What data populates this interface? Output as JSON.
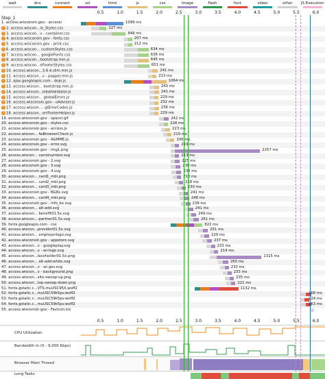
{
  "legend": [
    {
      "label": "wait",
      "color": "#d0d0d0"
    },
    {
      "label": "dns",
      "color": "#2f8f8f"
    },
    {
      "label": "connect",
      "color": "#e87d1a"
    },
    {
      "label": "ssl",
      "color": "#b14fc2"
    },
    {
      "label": "html",
      "color": "#5b8fd6"
    },
    {
      "label": "js",
      "color": "#e5c07a"
    },
    {
      "label": "css",
      "color": "#a6d38a"
    },
    {
      "label": "image",
      "color": "#a78ac4"
    },
    {
      "label": "flash",
      "color": "#2f9a4f"
    },
    {
      "label": "font",
      "color": "#e04c3c"
    },
    {
      "label": "video",
      "color": "#1f9e9e"
    },
    {
      "label": "other",
      "color": "#cfcfcf"
    },
    {
      "label": "JS Execution",
      "color": "#f5b3d6"
    }
  ],
  "axis_ticks": [
    "0.5",
    "1.0",
    "1.5",
    "2.0",
    "2.5",
    "3.0",
    "3.5",
    "4.0",
    "4.5",
    "5.0",
    "5.5",
    "6.0"
  ],
  "step_label": "Step_1",
  "requests": [
    {
      "label": "1. access.wisconsin.gov - access/",
      "time": "1099 ms",
      "warn": false
    },
    {
      "label": "2. access.wiscon...ie_Styles.css",
      "time": "227 ms",
      "warn": true
    },
    {
      "label": "3. access.wiscon...v - container.css",
      "time": "848 ms",
      "warn": true
    },
    {
      "label": "4. access.wisconsin.gov - fonts.css",
      "time": "207 ms",
      "warn": true
    },
    {
      "label": "5. access.wisconsin.gov - print.css",
      "time": "212 ms",
      "warn": true
    },
    {
      "label": "6. access.wiscon... customStyles.css",
      "time": "634 ms",
      "warn": true
    },
    {
      "label": "7. access.wiscon... googleFonts.css",
      "time": "636 ms",
      "warn": true
    },
    {
      "label": "8. access.wiscon...bootstrap.min.js",
      "time": "645 ms",
      "warn": true
    },
    {
      "label": "9. access.wiscon...eFooterStyles.css",
      "time": "651 ms",
      "warn": true
    },
    {
      "label": "10. access.wiscon...3.6.4.slim.min.js",
      "time": "241 ms",
      "warn": true
    },
    {
      "label": "11. access.wiscon...v - popper.min.js",
      "time": "213 ms",
      "warn": true
    },
    {
      "label": "12. ajax.googleapis.com - dojo.js",
      "time": "1064 ms",
      "warn": true
    },
    {
      "label": "13. access.wiscon... bootstrap.min.js",
      "time": "243 ms",
      "warn": true
    },
    {
      "label": "14. access.wiscon...lobalValidator.js",
      "time": "241 ms",
      "warn": true
    },
    {
      "label": "15. access.wiscon... globalErrors.js",
      "time": "229 ms",
      "warn": true
    },
    {
      "label": "16. access.wisconsin.gov - oAdviser.js",
      "time": "232 ms",
      "warn": true
    },
    {
      "label": "17. access.wiscon...- glErrorCodes.js",
      "time": "236 ms",
      "warn": true
    },
    {
      "label": "18. access.wiscon...errFooterHelper.js",
      "time": "229 ms",
      "warn": true
    },
    {
      "label": "19. access.wisconsin.gov - spacer.gif",
      "time": "242 ms",
      "warn": false
    },
    {
      "label": "20. access.wisconsin.gov - styles.css",
      "time": "228 ms",
      "warn": false
    },
    {
      "label": "21. access.wisconsin.gov - access.js",
      "time": "223 ms",
      "warn": false
    },
    {
      "label": "22. access.wiscon... fwBrowserCheck.js",
      "time": "219 ms",
      "warn": false
    },
    {
      "label": "23. access.wisconsin.gov - AGMME.js",
      "time": "206 ms",
      "warn": false
    },
    {
      "label": "24. access.wisconsin.gov - error.svg",
      "time": "219 ms",
      "warn": false
    },
    {
      "label": "25. access.wisconsin.gov - img1.png",
      "time": "2257 ms",
      "warn": false
    },
    {
      "label": "26. access.wiscon... carrotsymbol.svg",
      "time": "213 ms",
      "warn": false
    },
    {
      "label": "27. access.wisconsin.gov - 2.svg",
      "time": "225 ms",
      "warn": false
    },
    {
      "label": "28. access.wisconsin.gov - 3.svg",
      "time": "230 ms",
      "warn": false
    },
    {
      "label": "29. access.wisconsin.gov - 4.svg",
      "time": "235 ms",
      "warn": false
    },
    {
      "label": "30. access.wiscon... card1_mbl.png",
      "time": "218 ms",
      "warn": false
    },
    {
      "label": "31. access.wiscon... card2_mbl.png",
      "time": "218 ms",
      "warn": false
    },
    {
      "label": "32. access.wiscon... card3_mbl.png",
      "time": "230 ms",
      "warn": false
    },
    {
      "label": "33. access.wisconsin.gov - BG8x.svg",
      "time": "241 ms",
      "warn": false
    },
    {
      "label": "34. access.wiscon... card4_mbl.png",
      "time": "248 ms",
      "warn": false
    },
    {
      "label": "35. access.wisconsin.gov - info_bx.svg",
      "time": "238 ms",
      "warn": false
    },
    {
      "label": "36. access.wiscon... alt-add.svg",
      "time": "241 ms",
      "warn": false
    },
    {
      "label": "37. access.wiscon... benefit01.5x.svg",
      "time": "249 ms",
      "warn": false
    },
    {
      "label": "38. access.wiscon...-partner01.5x.svg",
      "time": "261 ms",
      "warn": false
    },
    {
      "label": "39. fonts.googleapis.com - css",
      "time": "822 ms",
      "warn": false
    },
    {
      "label": "40. access.wiscon...provider01.5x.svg",
      "time": "251 ms",
      "warn": false
    },
    {
      "label": "41. access.wiscon... employerlogo.svg",
      "time": "229 ms",
      "warn": false
    },
    {
      "label": "42. access.wisconsin.gov - appstore.svg",
      "time": "237 ms",
      "warn": false
    },
    {
      "label": "43. access.wiscon...v - googleplay.svg",
      "time": "233 ms",
      "warn": false
    },
    {
      "label": "44. access.wiscon...v - wi-logo.svg",
      "time": "214 ms",
      "warn": false
    },
    {
      "label": "45. access.wiscon...laceholder01.5x.png",
      "time": "1315 ms",
      "warn": false
    },
    {
      "label": "46. access.wiscon... alt-add-white.svg",
      "time": "260 ms",
      "warn": false
    },
    {
      "label": "47. access.wiscon...v - wi.gov.svg",
      "time": "233 ms",
      "warn": false
    },
    {
      "label": "48. access.wiscon...v - background.png",
      "time": "233 ms",
      "warn": false
    },
    {
      "label": "49. access.wiscon...site-swoop-up.png",
      "time": "235 ms",
      "warn": false
    },
    {
      "label": "50. access.wiscon...top-swoop-down.png",
      "time": "221 ms",
      "warn": false
    },
    {
      "label": "51. fonts.gstatic.c...VTS-muUSC95X.woff2",
      "time": "1132 ms",
      "warn": false
    },
    {
      "label": "52. fonts.gstatic.c...muUSC59k5pv.woff2",
      "time": "268 ms",
      "warn": false
    },
    {
      "label": "53. fonts.gstatic.c...muUSC59k5pv.woff2",
      "time": "224 ms",
      "warn": false
    },
    {
      "label": "54. fonts.gstatic.c...muUSC59k5pv.woff2",
      "time": "263 ms",
      "warn": false
    },
    {
      "label": "55. access.wisconsin.gov - Favicon.ico",
      "time": "",
      "warn": false
    }
  ],
  "graphs": {
    "cpu": "CPU Utilization",
    "bandwidth": "Bandwidth In (0 - 9,000 Kbps)",
    "main_thread": "Browser Main Thread",
    "long_tasks": "Long Tasks"
  }
}
